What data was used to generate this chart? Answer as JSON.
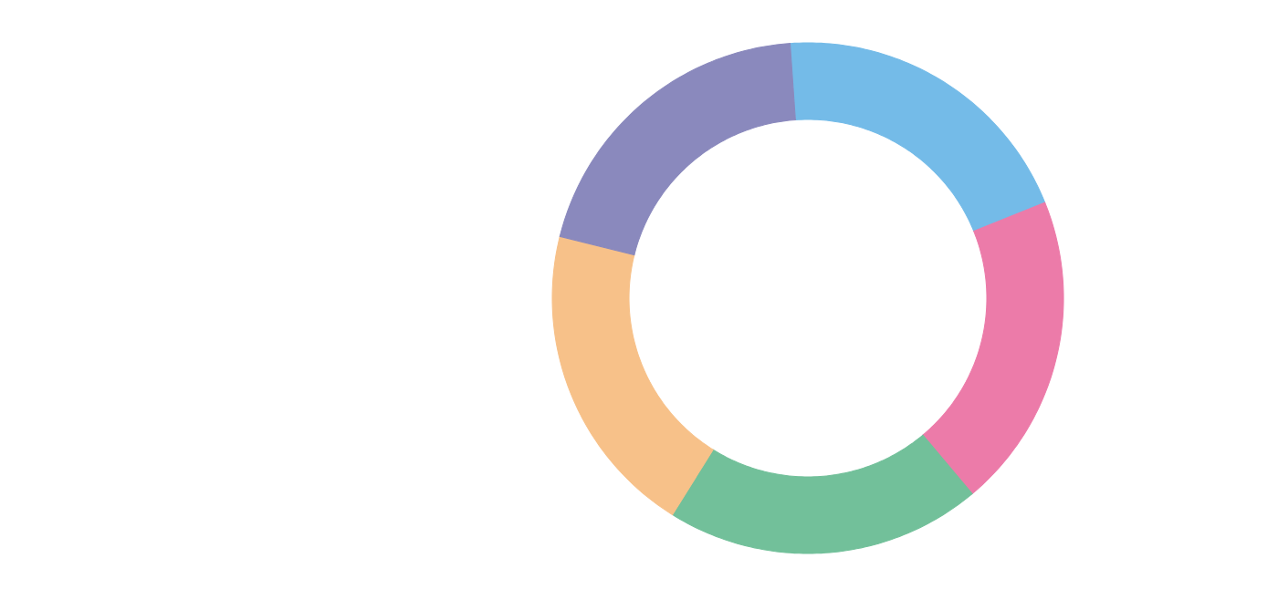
{
  "chart_data": {
    "type": "donut",
    "categories": [
      null,
      null,
      null,
      null,
      null
    ],
    "values": [
      20,
      20,
      20,
      20,
      20
    ],
    "colors": [
      "#74bbe8",
      "#ec7ba9",
      "#72c09a",
      "#f7c189",
      "#8a89bd"
    ]
  }
}
